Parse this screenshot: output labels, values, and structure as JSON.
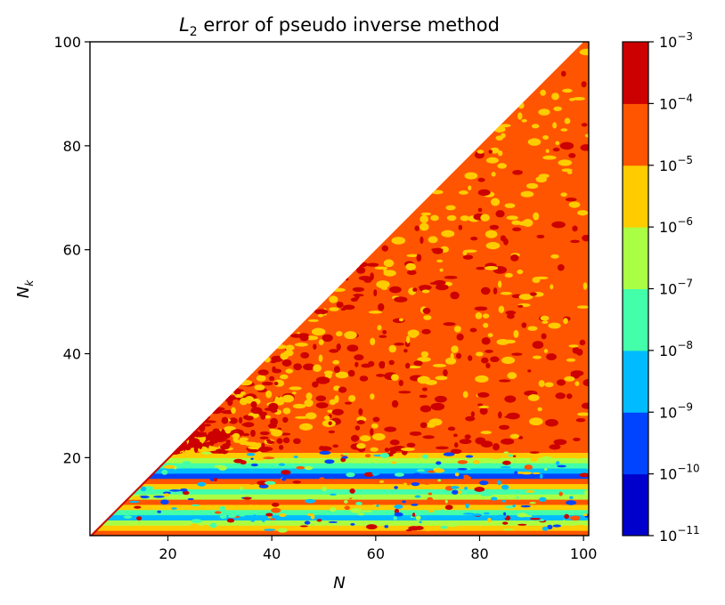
{
  "chart_data": {
    "type": "heatmap",
    "subtype": "filled-contour",
    "title": {
      "prefix": "L",
      "sub": "2",
      "rest": " error of pseudo inverse method"
    },
    "xlabel": "N",
    "ylabel": {
      "main": "N",
      "sub": "k"
    },
    "xlim": [
      5,
      101
    ],
    "ylim": [
      5,
      100
    ],
    "xticks": [
      20,
      40,
      60,
      80,
      100
    ],
    "yticks": [
      20,
      40,
      60,
      80,
      100
    ],
    "domain": "triangle: Nk <= N",
    "colorbar": {
      "scale": "log",
      "levels_exponent": [
        -11,
        -10,
        -9,
        -8,
        -7,
        -6,
        -5,
        -4,
        -3
      ],
      "tick_base": "10",
      "tick_exponents": [
        "−11",
        "−10",
        "−9",
        "−8",
        "−7",
        "−6",
        "−5",
        "−4",
        "−3"
      ],
      "colors": [
        "#0000cc",
        "#0044ff",
        "#00bbff",
        "#44ffaa",
        "#aaff44",
        "#ffcc00",
        "#ff5500",
        "#cc0000"
      ]
    },
    "bands_by_Nk": [
      {
        "nk": [
          5,
          6
        ],
        "level": 6
      },
      {
        "nk": [
          6,
          7
        ],
        "level": 5
      },
      {
        "nk": [
          7,
          8
        ],
        "level": 4
      },
      {
        "nk": [
          8,
          9
        ],
        "level": 2
      },
      {
        "nk": [
          9,
          10
        ],
        "level": 3
      },
      {
        "nk": [
          10,
          11
        ],
        "level": 5
      },
      {
        "nk": [
          11,
          12
        ],
        "level": 6
      },
      {
        "nk": [
          12,
          13
        ],
        "level": 4
      },
      {
        "nk": [
          13,
          14
        ],
        "level": 3
      },
      {
        "nk": [
          14,
          15
        ],
        "level": 5
      },
      {
        "nk": [
          15,
          16
        ],
        "level": 6
      },
      {
        "nk": [
          16,
          17
        ],
        "level": 1
      },
      {
        "nk": [
          17,
          18
        ],
        "level": 2
      },
      {
        "nk": [
          18,
          19
        ],
        "level": 3
      },
      {
        "nk": [
          19,
          20
        ],
        "level": 4
      },
      {
        "nk": [
          20,
          21
        ],
        "level": 5
      },
      {
        "nk": [
          21,
          100
        ],
        "level": 6
      }
    ]
  }
}
